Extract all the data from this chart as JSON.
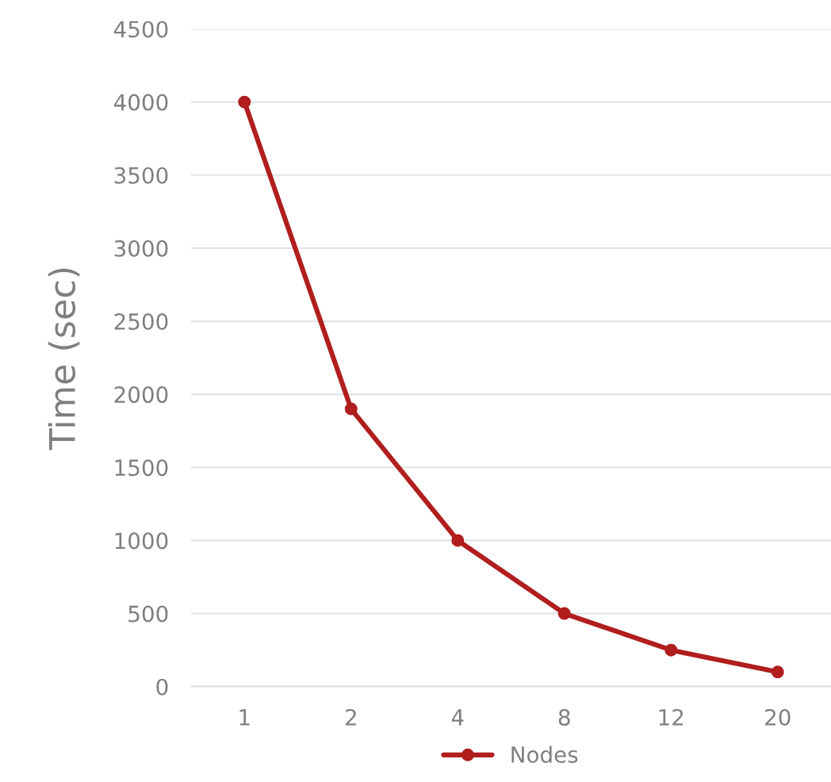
{
  "chart_data": {
    "type": "line",
    "ylabel": "Time (sec)",
    "categories": [
      "1",
      "2",
      "4",
      "8",
      "12",
      "20"
    ],
    "series": [
      {
        "name": "Nodes",
        "color": "#b01e1e",
        "values": [
          4000,
          1900,
          1000,
          500,
          250,
          100
        ]
      }
    ],
    "ylim": [
      0,
      4500
    ],
    "yticks": [
      0,
      500,
      1000,
      1500,
      2000,
      2500,
      3000,
      3500,
      4000,
      4500
    ],
    "grid": "y",
    "legend": "bottom",
    "marker": "circle",
    "line_style": "solid"
  }
}
